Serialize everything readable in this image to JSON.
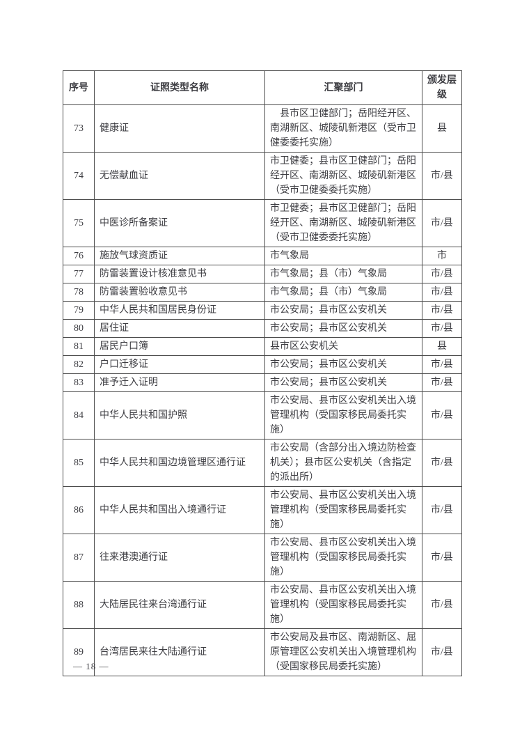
{
  "colors": {
    "text": "#3d3d42",
    "border": "#4c4c4c",
    "background": "#ffffff"
  },
  "page": {
    "footer_page_number": "— 18 —"
  },
  "table": {
    "columns": [
      {
        "key": "index",
        "label": "序号"
      },
      {
        "key": "name",
        "label": "证照类型名称"
      },
      {
        "key": "department",
        "label": "汇聚部门"
      },
      {
        "key": "level",
        "label": "颁发层级"
      }
    ],
    "rows": [
      {
        "index": "73",
        "name": "健康证",
        "department": "　县市区卫健部门；岳阳经开区、南湖新区、城陵矶新港区（受市卫健委委托实施）",
        "level": "县"
      },
      {
        "index": "74",
        "name": "无偿献血证",
        "department": "市卫健委；县市区卫健部门；岳阳经开区、南湖新区、城陵矶新港区（受市卫健委委托实施）",
        "level": "市/县"
      },
      {
        "index": "75",
        "name": "中医诊所备案证",
        "department": "市卫健委；县市区卫健部门；岳阳经开区、南湖新区、城陵矶新港区（受市卫健委委托实施）",
        "level": "市/县"
      },
      {
        "index": "76",
        "name": "施放气球资质证",
        "department": "市气象局",
        "level": "市"
      },
      {
        "index": "77",
        "name": "防雷装置设计核准意见书",
        "department": "市气象局；县（市）气象局",
        "level": "市/县"
      },
      {
        "index": "78",
        "name": "防雷装置验收意见书",
        "department": "市气象局；县（市）气象局",
        "level": "市/县"
      },
      {
        "index": "79",
        "name": "中华人民共和国居民身份证",
        "department": "市公安局；县市区公安机关",
        "level": "市/县"
      },
      {
        "index": "80",
        "name": "居住证",
        "department": "市公安局；县市区公安机关",
        "level": "市/县"
      },
      {
        "index": "81",
        "name": "居民户口簿",
        "department": "县市区公安机关",
        "level": "县"
      },
      {
        "index": "82",
        "name": "户口迁移证",
        "department": "市公安局；县市区公安机关",
        "level": "市/县"
      },
      {
        "index": "83",
        "name": "准予迁入证明",
        "department": "市公安局；县市区公安机关",
        "level": "市/县"
      },
      {
        "index": "84",
        "name": "中华人民共和国护照",
        "department": "市公安局、县市区公安机关出入境管理机构（受国家移民局委托实施）",
        "level": "市/县"
      },
      {
        "index": "85",
        "name": "中华人民共和国边境管理区通行证",
        "department": "市公安局（含部分出入境边防检查机关）；县市区公安机关（含指定的派出所）",
        "level": "市/县"
      },
      {
        "index": "86",
        "name": "中华人民共和国出入境通行证",
        "department": "市公安局、县市区公安机关出入境管理机构（受国家移民局委托实施）",
        "level": "市/县"
      },
      {
        "index": "87",
        "name": "往来港澳通行证",
        "department": "市公安局、县市区公安机关出入境管理机构（受国家移民局委托实施）",
        "level": "市/县"
      },
      {
        "index": "88",
        "name": "大陆居民往来台湾通行证",
        "department": "市公安局、县市区公安机关出入境管理机构（受国家移民局委托实施）",
        "level": "市/县"
      },
      {
        "index": "89",
        "name": "台湾居民来往大陆通行证",
        "department": "市公安局及县市区、南湖新区、屈原管理区公安机关出入境管理机构（受国家移民局委托实施）",
        "level": "市/县"
      }
    ]
  }
}
